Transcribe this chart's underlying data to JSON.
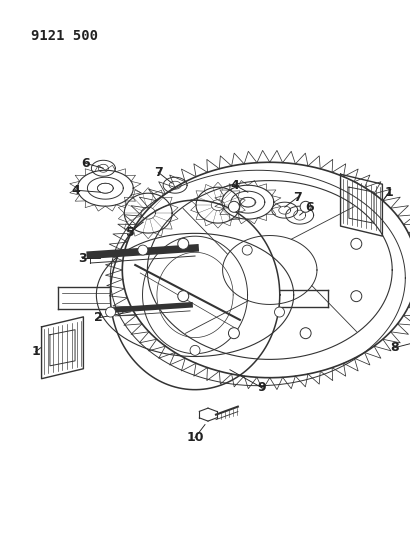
{
  "title": "9121 500",
  "bg": "#ffffff",
  "lc": "#333333",
  "tc": "#222222",
  "figsize": [
    4.11,
    5.33
  ],
  "dpi": 100
}
